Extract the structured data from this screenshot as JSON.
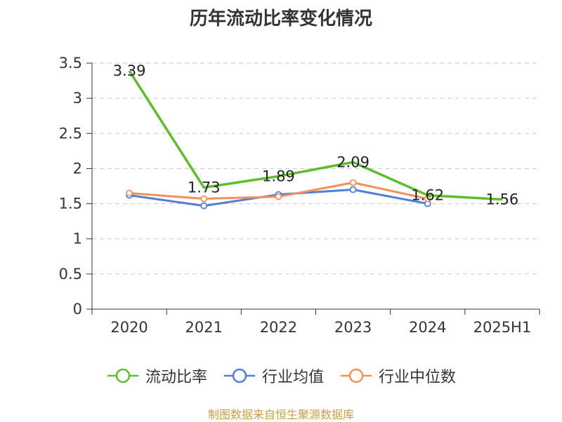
{
  "chart_data": {
    "type": "line",
    "title": "历年流动比率变化情况",
    "categories": [
      "2020",
      "2021",
      "2022",
      "2023",
      "2024",
      "2025H1"
    ],
    "ylim": [
      0,
      3.5
    ],
    "yticks": [
      "0",
      "0.5",
      "1",
      "1.5",
      "2",
      "2.5",
      "3",
      "3.5"
    ],
    "grid": true,
    "legend_position": "bottom",
    "series": [
      {
        "name": "流动比率",
        "color": "#5cbf2a",
        "values": [
          3.39,
          1.73,
          1.89,
          2.09,
          1.62,
          1.56
        ],
        "labels": [
          "3.39",
          "1.73",
          "1.89",
          "2.09",
          "1.62",
          "1.56"
        ],
        "markers": false
      },
      {
        "name": "行业均值",
        "color": "#4f7fd8",
        "values": [
          1.62,
          1.47,
          1.63,
          1.7,
          1.5,
          null
        ],
        "markers": true
      },
      {
        "name": "行业中位数",
        "color": "#f4915a",
        "values": [
          1.65,
          1.57,
          1.6,
          1.8,
          1.57,
          null
        ],
        "markers": true
      }
    ]
  },
  "footer": {
    "source": "制图数据来自恒生聚源数据库"
  }
}
